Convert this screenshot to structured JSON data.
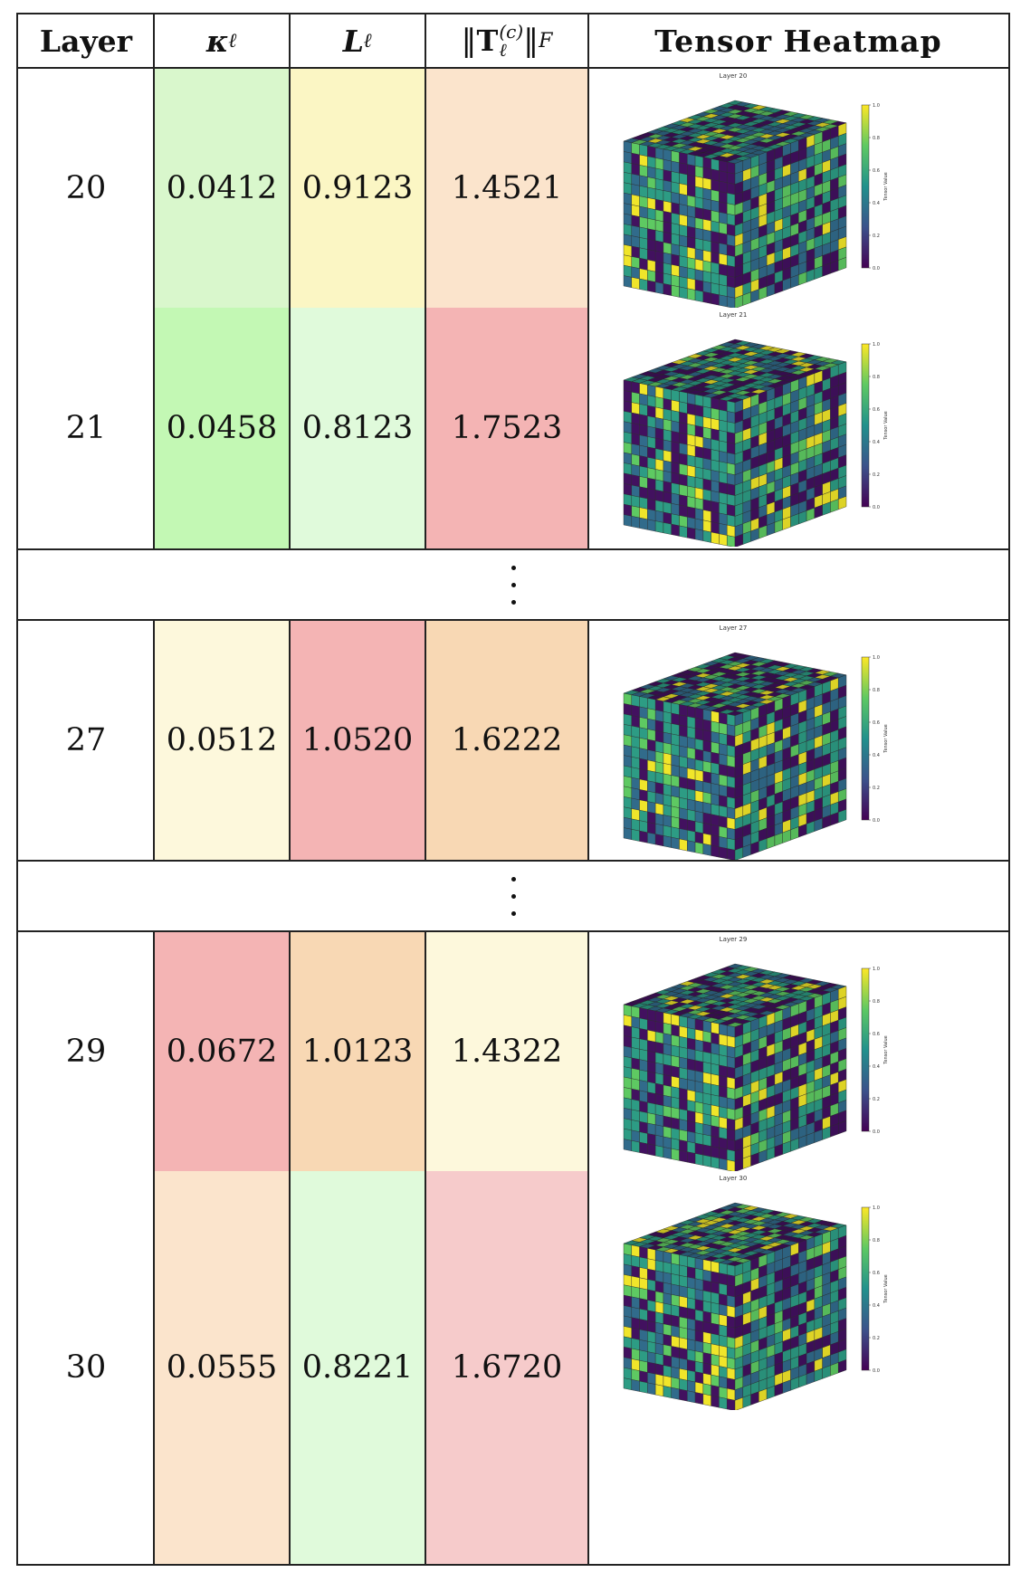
{
  "header": {
    "layer": "Layer",
    "kappa": "κ",
    "kappa_sub": "ℓ",
    "lip": "L",
    "lip_sub": "ℓ",
    "norm_T": "T",
    "norm_sup": "(c)",
    "norm_sub": "ℓ",
    "norm_F": "F",
    "heatmap": "Tensor Heatmap"
  },
  "rows": [
    {
      "layer": "20",
      "kappa": "0.0412",
      "L": "0.9123",
      "T": "1.4521",
      "plot_title": "Layer 20",
      "colors": {
        "kappa": "#d9f7cc",
        "L": "#fbf6c4",
        "T": "#fbe4cc"
      }
    },
    {
      "layer": "21",
      "kappa": "0.0458",
      "L": "0.8123",
      "T": "1.7523",
      "plot_title": "Layer 21",
      "colors": {
        "kappa": "#c3f8b4",
        "L": "#e0fadb",
        "T": "#f4b4b4"
      }
    },
    {
      "layer": "27",
      "kappa": "0.0512",
      "L": "1.0520",
      "T": "1.6222",
      "plot_title": "Layer 27",
      "colors": {
        "kappa": "#fdf8dc",
        "L": "#f4b4b4",
        "T": "#f8d8b4"
      }
    },
    {
      "layer": "29",
      "kappa": "0.0672",
      "L": "1.0123",
      "T": "1.4322",
      "plot_title": "Layer 29",
      "colors": {
        "kappa": "#f4b4b4",
        "L": "#f8d8b4",
        "T": "#fdf8dc"
      }
    },
    {
      "layer": "30",
      "kappa": "0.0555",
      "L": "0.8221",
      "T": "1.6720",
      "plot_title": "Layer 30",
      "colors": {
        "kappa": "#fbe4cc",
        "L": "#e0fadb",
        "T": "#f6cbcb"
      }
    }
  ],
  "colorbar": {
    "label": "Tensor Value",
    "ticks": [
      "0.0",
      "0.2",
      "0.4",
      "0.6",
      "0.8",
      "1.0"
    ],
    "colormap": "viridis"
  }
}
